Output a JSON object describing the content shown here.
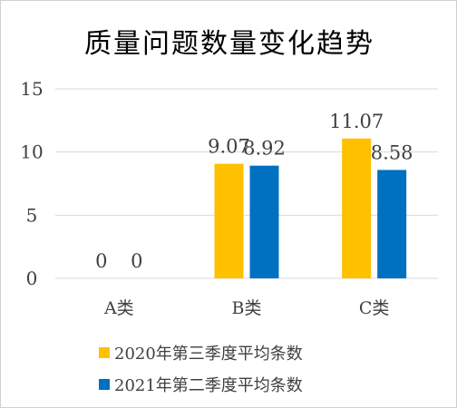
{
  "chart_data": {
    "type": "bar",
    "title": "质量问题数量变化趋势",
    "categories": [
      "A类",
      "B类",
      "C类"
    ],
    "series": [
      {
        "name": "2020年第三季度平均条数",
        "values": [
          0,
          9.07,
          11.07
        ],
        "labels": [
          "0",
          "9.07",
          "11.07"
        ],
        "color": "#FFC000"
      },
      {
        "name": "2021年第二季度平均条数",
        "values": [
          0,
          8.92,
          8.58
        ],
        "labels": [
          "0",
          "8.92",
          "8.58"
        ],
        "color": "#0070C0"
      }
    ],
    "yticks": [
      "0",
      "5",
      "10",
      "15"
    ],
    "ylim": [
      0,
      15
    ],
    "grid": true,
    "legend_position": "bottom"
  }
}
